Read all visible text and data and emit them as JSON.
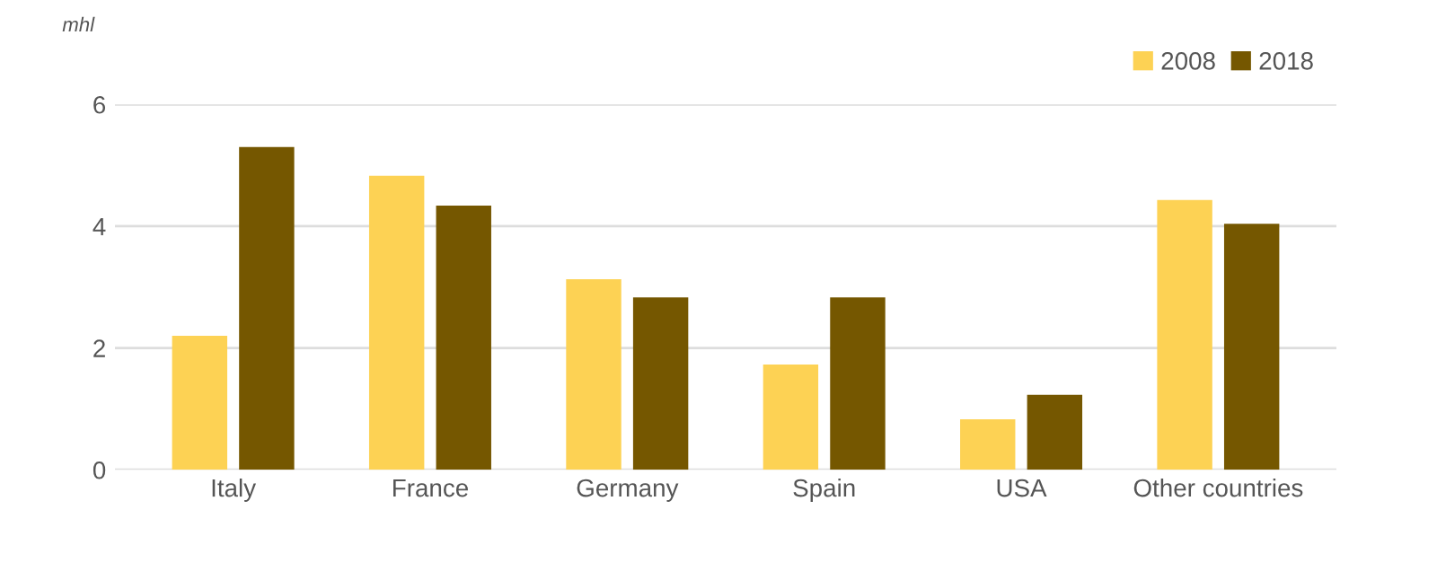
{
  "chart_data": {
    "type": "bar",
    "ylabel": "mhl",
    "categories": [
      "Italy",
      "France",
      "Germany",
      "Spain",
      "USA",
      "Other countries"
    ],
    "series": [
      {
        "name": "2008",
        "color": "#fdd254",
        "values": [
          2.2,
          4.83,
          3.13,
          1.73,
          0.83,
          4.43
        ]
      },
      {
        "name": "2018",
        "color": "#755700",
        "values": [
          5.3,
          4.34,
          2.83,
          2.83,
          1.23,
          4.04
        ]
      }
    ],
    "ylim": [
      0,
      6
    ],
    "yticks": [
      0,
      2,
      4,
      6
    ],
    "grid": "y",
    "legend": "top right"
  }
}
